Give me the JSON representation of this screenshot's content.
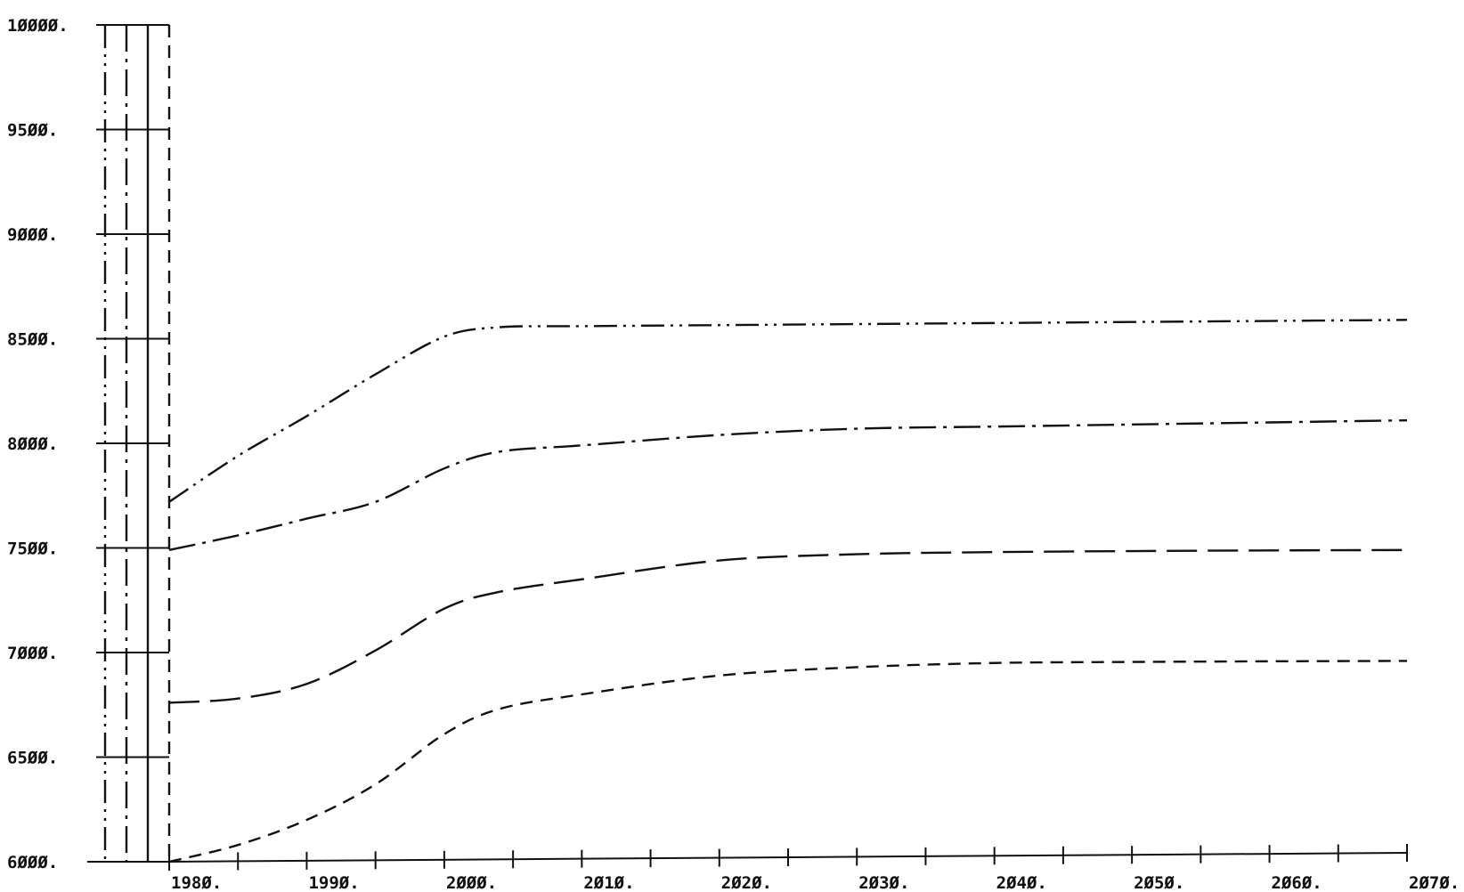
{
  "chart_data": {
    "type": "line",
    "title": "",
    "xlabel": "",
    "ylabel": "",
    "xlim": [
      1980,
      2070
    ],
    "ylim": [
      6000,
      10000
    ],
    "x_ticks": [
      1980,
      1990,
      2000,
      2010,
      2020,
      2030,
      2040,
      2050,
      2060,
      2070
    ],
    "x_tick_labels": [
      "198Ø.",
      "199Ø.",
      "2ØØØ.",
      "2Ø1Ø.",
      "2Ø2Ø.",
      "2Ø3Ø.",
      "2Ø4Ø.",
      "2Ø5Ø.",
      "2Ø6Ø.",
      "2Ø7Ø."
    ],
    "y_ticks": [
      6000,
      6500,
      7000,
      7500,
      8000,
      8500,
      9000,
      9500,
      10000
    ],
    "y_tick_labels": [
      "6ØØØ.",
      "65ØØ.",
      "7ØØØ.",
      "75ØØ.",
      "8ØØØ.",
      "85ØØ.",
      "9ØØØ.",
      "95ØØ.",
      "1ØØØØ."
    ],
    "grid": false,
    "legend": "left panel of vertical line-style keys (no text)",
    "series": [
      {
        "style": "dash-dot-dot",
        "x": [
          1980,
          1985,
          1990,
          1995,
          2000,
          2004,
          2010,
          2020,
          2030,
          2040,
          2050,
          2060,
          2070
        ],
        "y": [
          7720,
          7940,
          8130,
          8330,
          8510,
          8555,
          8560,
          8565,
          8570,
          8575,
          8580,
          8585,
          8590
        ]
      },
      {
        "style": "dash-dot",
        "x": [
          1980,
          1985,
          1990,
          1995,
          2000,
          2004,
          2010,
          2020,
          2030,
          2040,
          2050,
          2060,
          2070
        ],
        "y": [
          7490,
          7560,
          7640,
          7720,
          7880,
          7960,
          7990,
          8040,
          8070,
          8080,
          8090,
          8100,
          8110
        ]
      },
      {
        "style": "long-dash",
        "x": [
          1980,
          1985,
          1990,
          1995,
          2000,
          2004,
          2010,
          2020,
          2030,
          2040,
          2050,
          2060,
          2070
        ],
        "y": [
          6760,
          6780,
          6850,
          7010,
          7210,
          7290,
          7350,
          7440,
          7470,
          7480,
          7485,
          7488,
          7490
        ]
      },
      {
        "style": "short-dash",
        "x": [
          1980,
          1985,
          1990,
          1995,
          2000,
          2004,
          2010,
          2020,
          2030,
          2040,
          2050,
          2060,
          2070
        ],
        "y": [
          6000,
          6080,
          6200,
          6370,
          6610,
          6730,
          6800,
          6890,
          6930,
          6950,
          6955,
          6958,
          6960
        ]
      }
    ],
    "colors": {
      "ink": "#111111",
      "background": "#ffffff"
    }
  }
}
